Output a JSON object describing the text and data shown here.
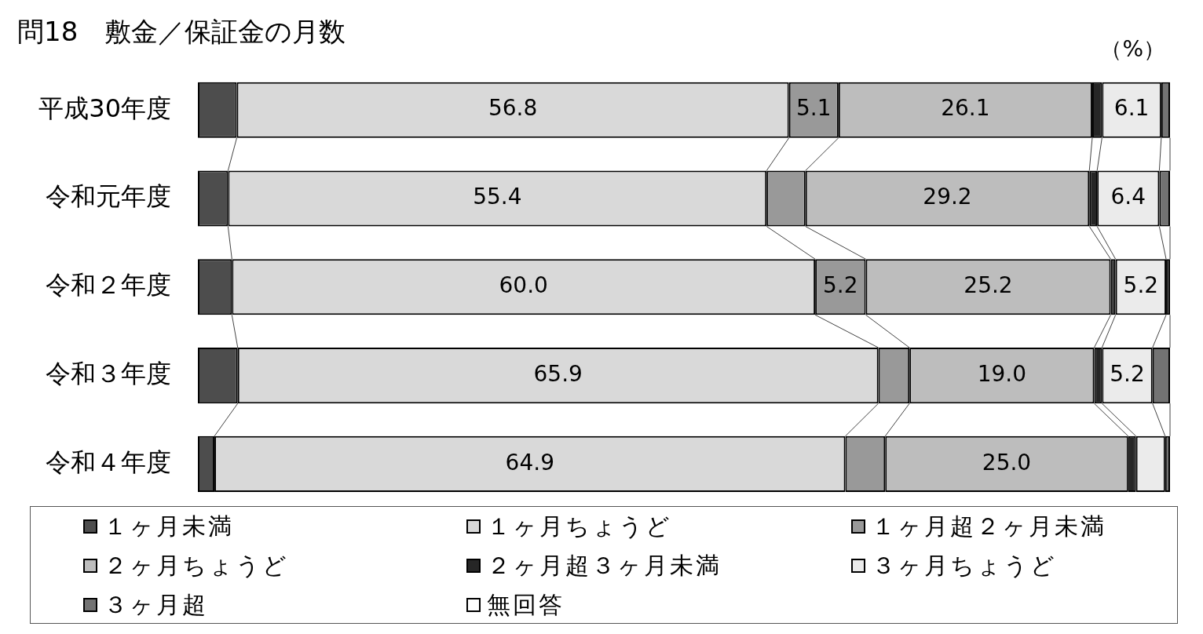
{
  "chart_data": {
    "type": "bar",
    "orientation": "horizontal",
    "stacked": true,
    "title": "問18　敷金／保証金の月数",
    "annotations": [
      "（%）"
    ],
    "categories": [
      "平成30年度",
      "令和元年度",
      "令和２年度",
      "令和３年度",
      "令和４年度"
    ],
    "xlim": [
      0,
      100
    ],
    "tick_labels": "y",
    "legend": "bottom",
    "series": [
      {
        "name": "１ヶ月未満",
        "color": "#4d4d4d",
        "values": [
          4.0,
          3.1,
          3.5,
          4.1,
          1.7
        ]
      },
      {
        "name": "１ヶ月ちょうど",
        "color": "#d9d9d9",
        "values": [
          56.8,
          55.4,
          60.0,
          65.9,
          64.9
        ],
        "value_labels": [
          "56.8",
          "55.4",
          "60.0",
          "65.9",
          "64.9"
        ]
      },
      {
        "name": "１ヶ月超２ヶ月未満",
        "color": "#999999",
        "values": [
          5.1,
          4.0,
          5.2,
          3.2,
          4.1
        ],
        "value_labels": [
          "5.1",
          null,
          "5.2",
          null,
          null
        ]
      },
      {
        "name": "２ヶ月ちょうど",
        "color": "#bdbdbd",
        "values": [
          26.1,
          29.2,
          25.2,
          19.0,
          25.0
        ],
        "value_labels": [
          "26.1",
          "29.2",
          "25.2",
          "19.0",
          "25.0"
        ]
      },
      {
        "name": "２ヶ月超３ヶ月未満",
        "color": "#262626",
        "values": [
          1.0,
          0.8,
          0.5,
          0.8,
          0.8
        ]
      },
      {
        "name": "３ヶ月ちょうど",
        "color": "#ebebeb",
        "values": [
          6.1,
          6.4,
          5.2,
          5.2,
          3.0
        ],
        "value_labels": [
          "6.1",
          "6.4",
          "5.2",
          "5.2",
          null
        ]
      },
      {
        "name": "３ヶ月超",
        "color": "#737373",
        "values": [
          0.9,
          1.1,
          0.4,
          1.8,
          0.5
        ]
      },
      {
        "name": "無回答",
        "color": "#ffffff",
        "values": [
          null,
          null,
          null,
          null,
          null
        ]
      }
    ]
  }
}
